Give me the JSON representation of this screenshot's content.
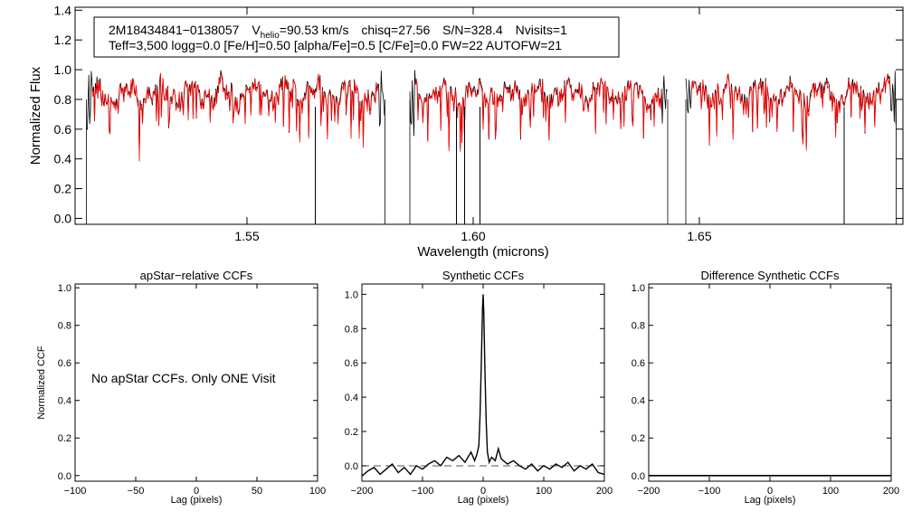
{
  "chart_data": [
    {
      "id": "spectrum",
      "type": "line",
      "xlabel": "Wavelength (microns)",
      "ylabel": "Normalized Flux",
      "xlim": [
        1.512,
        1.695
      ],
      "ylim": [
        -0.04,
        1.42
      ],
      "x_ticks": [
        1.55,
        1.6,
        1.65
      ],
      "x_tick_labels": [
        "1.55",
        "1.60",
        "1.65"
      ],
      "y_ticks": [
        0.0,
        0.2,
        0.4,
        0.6,
        0.8,
        1.0,
        1.2,
        1.4
      ],
      "y_tick_labels": [
        "0.0",
        "0.2",
        "0.4",
        "0.6",
        "0.8",
        "1.0",
        "1.2",
        "1.4"
      ],
      "chips": [
        [
          1.5145,
          1.5805
        ],
        [
          1.586,
          1.643
        ],
        [
          1.647,
          1.6935
        ]
      ],
      "series": [
        {
          "name": "observed spectrum",
          "color": "#000000"
        },
        {
          "name": "best-fit synthetic spectrum",
          "color": "#ff0000"
        }
      ],
      "deep_lines": [
        {
          "x": 1.5651,
          "y": -0.04
        },
        {
          "x": 1.5963,
          "y": -0.04
        },
        {
          "x": 1.5981,
          "y": -0.04
        },
        {
          "x": 1.6015,
          "y": -0.04
        },
        {
          "x": 1.682,
          "y": -0.04
        }
      ],
      "annotation": {
        "star": "2M18434841−0138057",
        "v_label": "V",
        "v_sub": "helio",
        "v_value": "=90.53 km/s",
        "chisq": "chisq=27.56",
        "sn": "S/N=328.4",
        "nvisits": "Nvisits=1",
        "line2": "Teff=3,500 logg=0.0 [Fe/H]=0.50 [alpha/Fe]=0.5 [C/Fe]=0.0 FW=22 AUTOFW=21"
      }
    },
    {
      "id": "apstar_ccf",
      "type": "line",
      "title": "apStar−relative CCFs",
      "xlabel": "Lag (pixels)",
      "ylabel": "Normalized CCF",
      "xlim": [
        -100,
        100
      ],
      "ylim": [
        -0.03,
        1.02
      ],
      "x_ticks": [
        -100,
        -50,
        0,
        50,
        100
      ],
      "x_tick_labels": [
        "−100",
        "−50",
        "0",
        "50",
        "100"
      ],
      "y_ticks": [
        0.0,
        0.2,
        0.4,
        0.6,
        0.8,
        1.0
      ],
      "y_tick_labels": [
        "0.0",
        "0.2",
        "0.4",
        "0.6",
        "0.8",
        "1.0"
      ],
      "message": "No apStar CCFs.  Only ONE Visit",
      "series": []
    },
    {
      "id": "synthetic_ccf",
      "type": "line",
      "title": "Synthetic CCFs",
      "xlabel": "Lag (pixels)",
      "xlim": [
        -200,
        200
      ],
      "ylim": [
        -0.09,
        1.06
      ],
      "x_ticks": [
        -200,
        -100,
        0,
        100,
        200
      ],
      "x_tick_labels": [
        "−200",
        "−100",
        "0",
        "100",
        "200"
      ],
      "y_ticks": [
        0.0,
        0.2,
        0.4,
        0.6,
        0.8,
        1.0
      ],
      "y_tick_labels": [
        "0.0",
        "0.2",
        "0.4",
        "0.6",
        "0.8",
        "1.0"
      ],
      "baseline": 0.0,
      "series": [
        {
          "name": "CCF",
          "x": [
            -200,
            -190,
            -180,
            -170,
            -160,
            -150,
            -140,
            -130,
            -120,
            -110,
            -100,
            -90,
            -80,
            -70,
            -60,
            -50,
            -40,
            -30,
            -20,
            -14,
            -10,
            -7,
            -5,
            -3,
            -1,
            0,
            1,
            3,
            5,
            7,
            10,
            14,
            20,
            25,
            30,
            40,
            50,
            60,
            70,
            80,
            90,
            100,
            110,
            120,
            130,
            140,
            150,
            160,
            170,
            180,
            190,
            200
          ],
          "y": [
            -0.06,
            -0.03,
            -0.01,
            -0.05,
            -0.02,
            0.01,
            -0.04,
            -0.01,
            -0.05,
            0.0,
            -0.02,
            0.01,
            0.03,
            0.0,
            0.05,
            0.03,
            0.06,
            0.02,
            0.08,
            0.03,
            0.07,
            0.12,
            0.3,
            0.6,
            0.92,
            1.0,
            0.9,
            0.55,
            0.25,
            0.08,
            0.02,
            0.05,
            0.03,
            0.1,
            0.04,
            0.01,
            0.03,
            0.0,
            -0.02,
            0.01,
            -0.03,
            0.0,
            -0.02,
            0.01,
            -0.01,
            0.02,
            -0.03,
            0.0,
            -0.02,
            0.01,
            -0.04,
            -0.05
          ]
        }
      ]
    },
    {
      "id": "difference_ccf",
      "type": "line",
      "title": "Difference Synthetic CCFs",
      "xlabel": "Lag (pixels)",
      "xlim": [
        -200,
        200
      ],
      "ylim": [
        -0.03,
        1.02
      ],
      "x_ticks": [
        -200,
        -100,
        0,
        100,
        200
      ],
      "x_tick_labels": [
        "−200",
        "−100",
        "0",
        "100",
        "200"
      ],
      "y_ticks": [
        0.0,
        0.2,
        0.4,
        0.6,
        0.8,
        1.0
      ],
      "y_tick_labels": [
        "0.0",
        "0.2",
        "0.4",
        "0.6",
        "0.8",
        "1.0"
      ],
      "series": [
        {
          "name": "difference CCF",
          "x": [
            -200,
            200
          ],
          "y": [
            0.0,
            0.0
          ]
        }
      ]
    }
  ]
}
